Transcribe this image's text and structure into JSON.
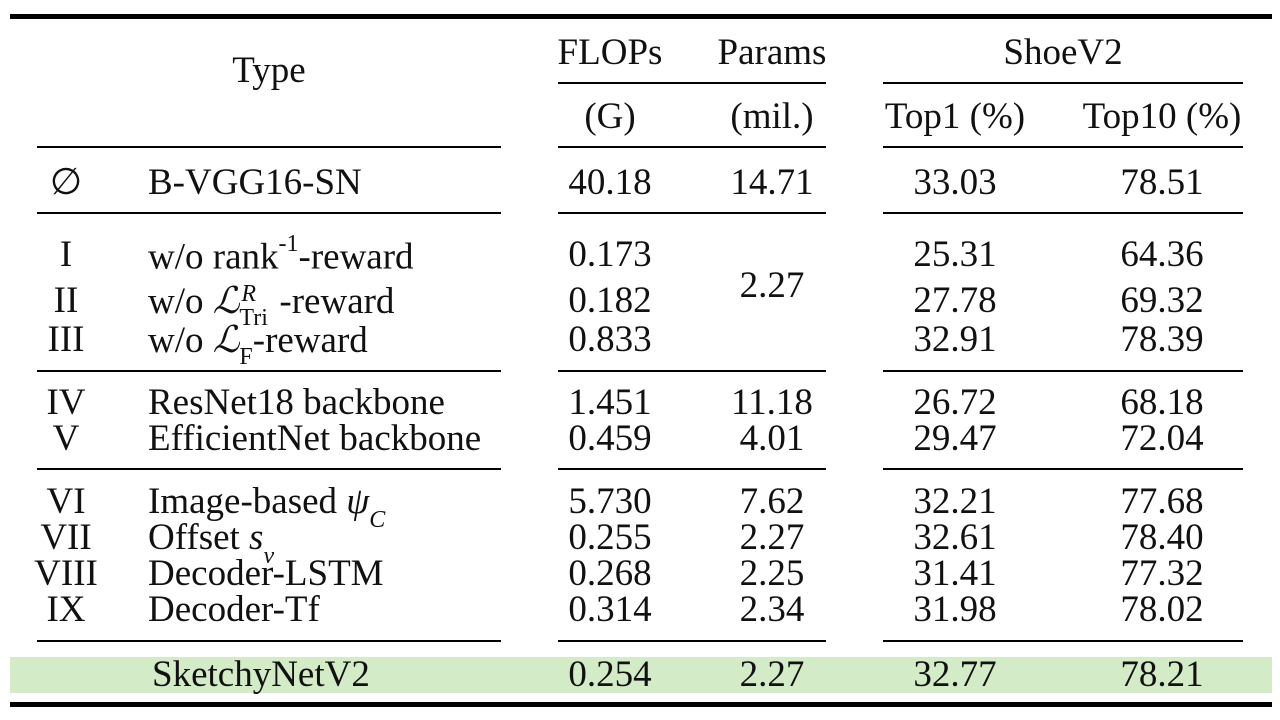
{
  "colors": {
    "highlight_row": "#d4ebc7",
    "rules": "#000000"
  },
  "header": {
    "type": "Type",
    "flops": "FLOPs",
    "flops_unit": "(G)",
    "params": "Params",
    "params_unit": "(mil.)",
    "dataset": "ShoeV2",
    "top1": "Top1 (%)",
    "top10": "Top10 (%)"
  },
  "rows": [
    {
      "id": "∅",
      "desc": "B-VGG16-SN",
      "flops": "40.18",
      "params": "14.71",
      "top1": "33.03",
      "top10": "78.51"
    },
    {
      "id": "I",
      "desc_pre": "w/o rank",
      "desc_sup": "-1",
      "desc_post": "-reward",
      "flops": "0.173",
      "top1": "25.31",
      "top10": "64.36"
    },
    {
      "id": "II",
      "desc_pre": "w/o ",
      "desc_math": "ℒ",
      "desc_sup": "R",
      "desc_sub": "Tri",
      "desc_post": "-reward",
      "flops": "0.182",
      "top1": "27.78",
      "top10": "69.32"
    },
    {
      "id": "III",
      "desc_pre": "w/o ",
      "desc_math": "ℒ",
      "desc_sub": "F",
      "desc_post": "-reward",
      "flops": "0.833",
      "top1": "32.91",
      "top10": "78.39"
    },
    {
      "id": "IV",
      "desc": "ResNet18 backbone",
      "flops": "1.451",
      "params": "11.18",
      "top1": "26.72",
      "top10": "68.18"
    },
    {
      "id": "V",
      "desc": "EfficientNet backbone",
      "flops": "0.459",
      "params": "4.01",
      "top1": "29.47",
      "top10": "72.04"
    },
    {
      "id": "VI",
      "desc_pre": "Image-based ",
      "desc_math": "ψ",
      "desc_sub": "C",
      "flops": "5.730",
      "params": "7.62",
      "top1": "32.21",
      "top10": "77.68"
    },
    {
      "id": "VII",
      "desc_pre": "Offset ",
      "desc_math": "s",
      "desc_sub": "v",
      "flops": "0.255",
      "params": "2.27",
      "top1": "32.61",
      "top10": "78.40"
    },
    {
      "id": "VIII",
      "desc": "Decoder-LSTM",
      "flops": "0.268",
      "params": "2.25",
      "top1": "31.41",
      "top10": "77.32"
    },
    {
      "id": "IX",
      "desc": "Decoder-Tf",
      "flops": "0.314",
      "params": "2.34",
      "top1": "31.98",
      "top10": "78.02"
    },
    {
      "id": "",
      "desc": "SketchyNetV2",
      "flops": "0.254",
      "params": "2.27",
      "top1": "32.77",
      "top10": "78.21"
    }
  ],
  "group_params": "2.27"
}
